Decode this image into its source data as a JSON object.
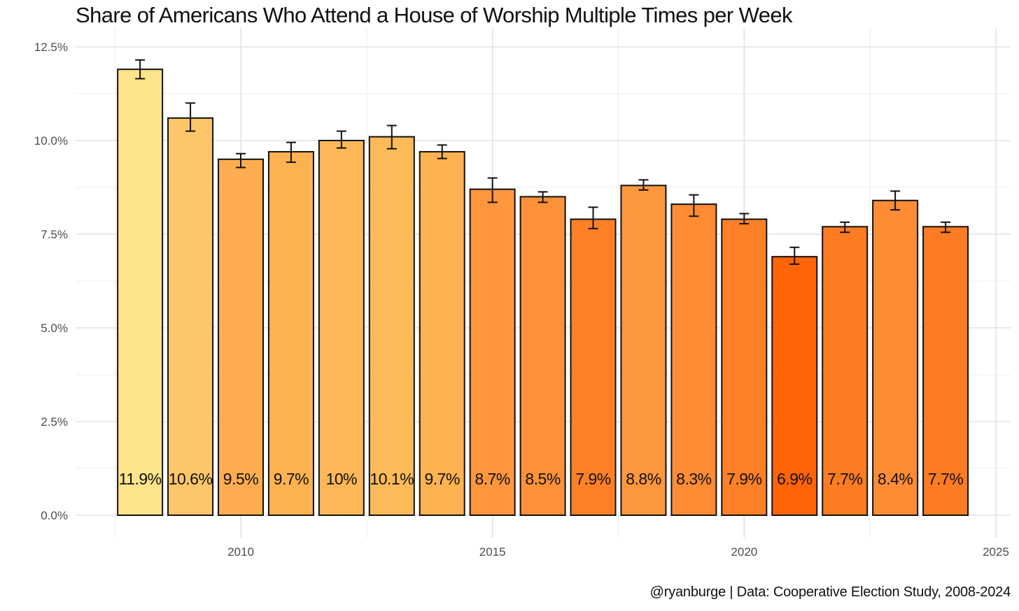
{
  "chart_data": {
    "type": "bar",
    "title": "Share of Americans Who Attend a House of Worship Multiple Times per Week",
    "caption": "@ryanburge | Data: Cooperative Election Study, 2008-2024",
    "xlabel": "",
    "ylabel": "",
    "xlim": [
      2007,
      2025
    ],
    "ylim": [
      0,
      12.5
    ],
    "x_ticks": [
      2010,
      2015,
      2020,
      2025
    ],
    "y_ticks": [
      0,
      2.5,
      5,
      7.5,
      10,
      12.5
    ],
    "y_tick_labels": [
      "0.0%",
      "2.5%",
      "5.0%",
      "7.5%",
      "10.0%",
      "12.5%"
    ],
    "grid": true,
    "error_bars": true,
    "bars": [
      {
        "year": 2008,
        "value": 11.9,
        "label": "11.9%",
        "err_low": 11.65,
        "err_high": 12.15,
        "color": "#FEE48A"
      },
      {
        "year": 2009,
        "value": 10.6,
        "label": "10.6%",
        "err_low": 10.25,
        "err_high": 11.0,
        "color": "#FEC66A"
      },
      {
        "year": 2010,
        "value": 9.5,
        "label": "9.5%",
        "err_low": 9.28,
        "err_high": 9.65,
        "color": "#FDAD4F"
      },
      {
        "year": 2011,
        "value": 9.7,
        "label": "9.7%",
        "err_low": 9.42,
        "err_high": 9.95,
        "color": "#FDB252"
      },
      {
        "year": 2012,
        "value": 10.0,
        "label": "10%",
        "err_low": 9.8,
        "err_high": 10.25,
        "color": "#FDB756"
      },
      {
        "year": 2013,
        "value": 10.1,
        "label": "10.1%",
        "err_low": 9.78,
        "err_high": 10.4,
        "color": "#FDBA59"
      },
      {
        "year": 2014,
        "value": 9.7,
        "label": "9.7%",
        "err_low": 9.52,
        "err_high": 9.88,
        "color": "#FDB252"
      },
      {
        "year": 2015,
        "value": 8.7,
        "label": "8.7%",
        "err_low": 8.35,
        "err_high": 9.0,
        "color": "#FD963D"
      },
      {
        "year": 2016,
        "value": 8.5,
        "label": "8.5%",
        "err_low": 8.35,
        "err_high": 8.63,
        "color": "#FD9139"
      },
      {
        "year": 2017,
        "value": 7.9,
        "label": "7.9%",
        "err_low": 7.65,
        "err_high": 8.22,
        "color": "#FD8026"
      },
      {
        "year": 2018,
        "value": 8.8,
        "label": "8.8%",
        "err_low": 8.68,
        "err_high": 8.95,
        "color": "#FD973E"
      },
      {
        "year": 2019,
        "value": 8.3,
        "label": "8.3%",
        "err_low": 7.98,
        "err_high": 8.55,
        "color": "#FD8C35"
      },
      {
        "year": 2020,
        "value": 7.9,
        "label": "7.9%",
        "err_low": 7.78,
        "err_high": 8.05,
        "color": "#FD8026"
      },
      {
        "year": 2021,
        "value": 6.9,
        "label": "6.9%",
        "err_low": 6.7,
        "err_high": 7.15,
        "color": "#FF6407"
      },
      {
        "year": 2022,
        "value": 7.7,
        "label": "7.7%",
        "err_low": 7.55,
        "err_high": 7.82,
        "color": "#FD7B22"
      },
      {
        "year": 2023,
        "value": 8.4,
        "label": "8.4%",
        "err_low": 8.15,
        "err_high": 8.65,
        "color": "#FD8C35"
      },
      {
        "year": 2024,
        "value": 7.7,
        "label": "7.7%",
        "err_low": 7.55,
        "err_high": 7.82,
        "color": "#FD7B22"
      }
    ]
  }
}
